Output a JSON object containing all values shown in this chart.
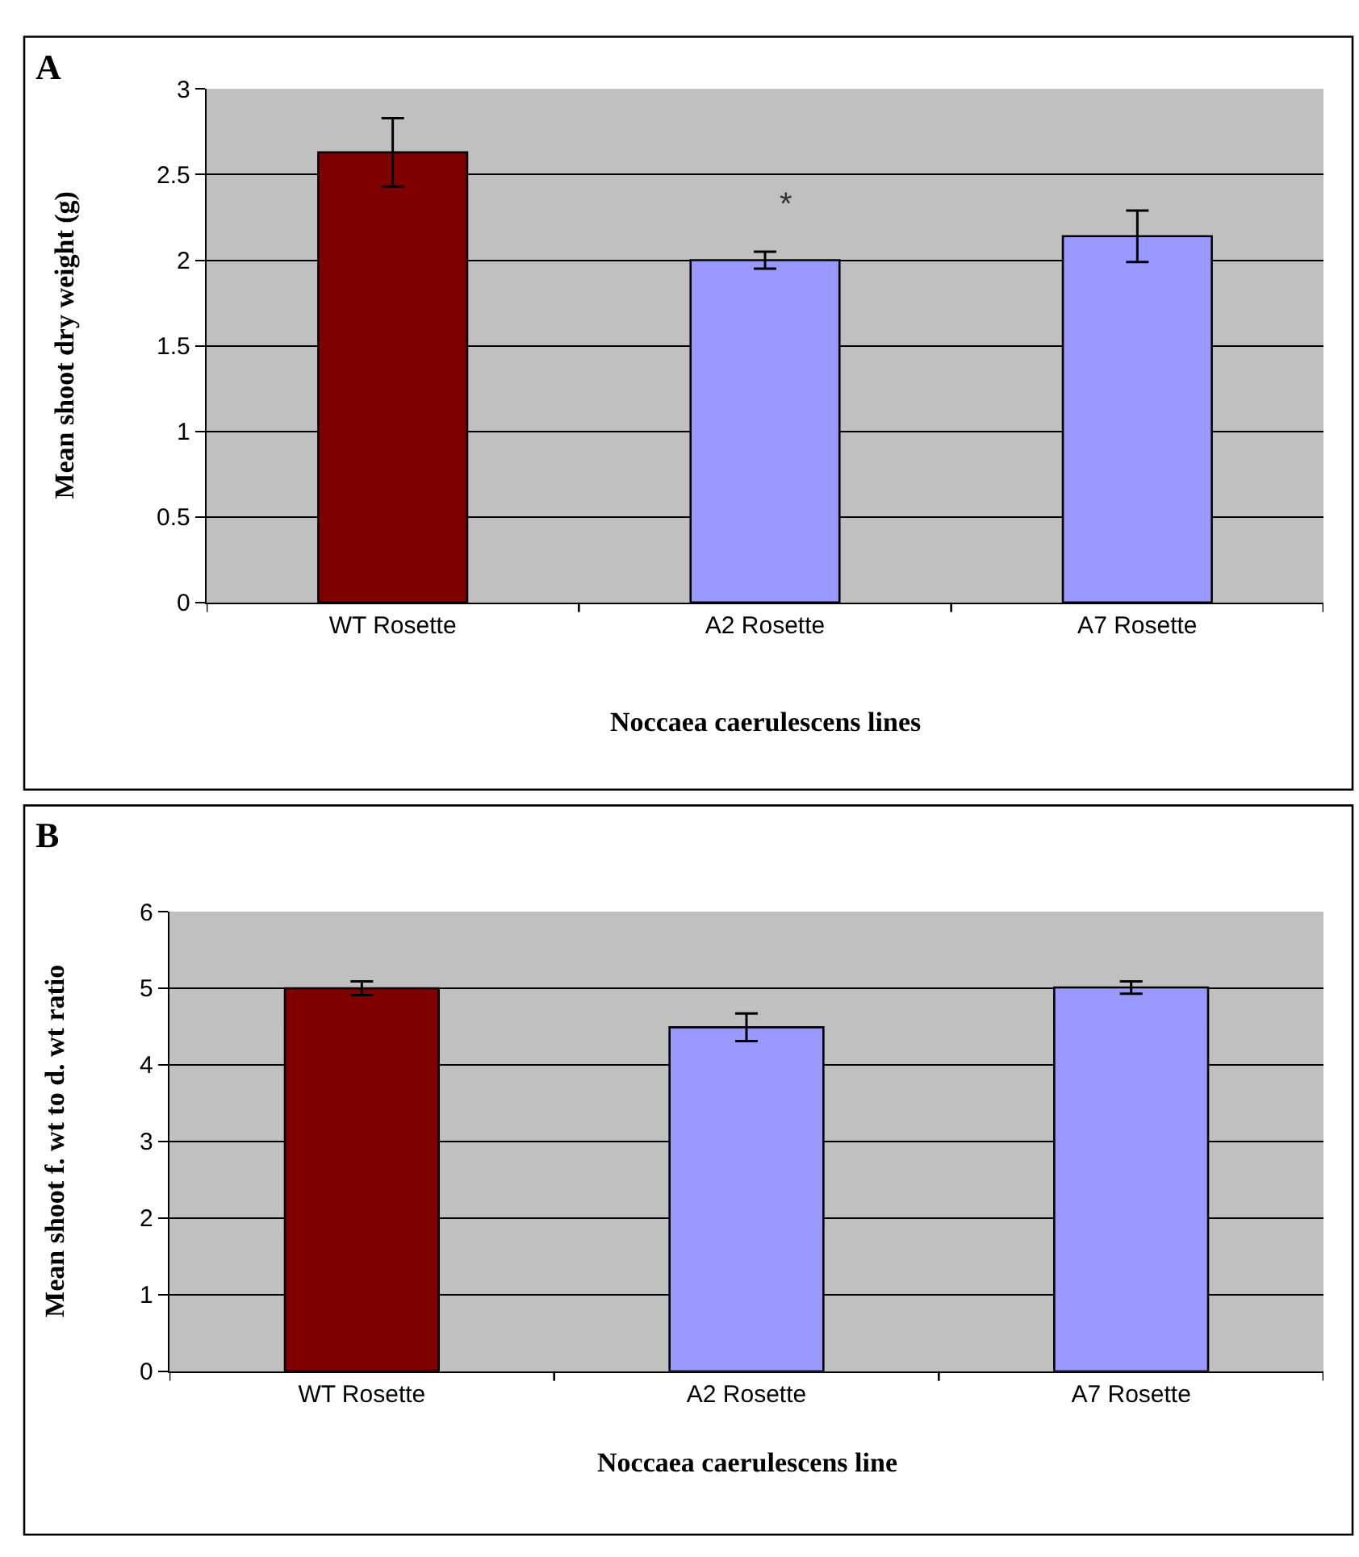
{
  "chart_data": [
    {
      "type": "bar",
      "title": "A",
      "xlabel": "Noccaea caerulescens lines",
      "ylabel": "Mean shoot dry weight (g)",
      "categories": [
        "WT Rosette",
        "A2 Rosette",
        "A7 Rosette"
      ],
      "values": [
        2.63,
        2.0,
        2.14
      ],
      "colors": [
        "#800000",
        "#9999ff",
        "#9999ff"
      ],
      "errors": [
        0.2,
        0.05,
        0.15
      ],
      "ylim": [
        0,
        3
      ],
      "yticks": [
        0,
        0.5,
        1,
        1.5,
        2,
        2.5,
        3
      ],
      "grid": "y",
      "annotations": [
        "*"
      ]
    },
    {
      "type": "bar",
      "title": "B",
      "xlabel": "Noccaea caerulescens line",
      "ylabel": "Mean shoot f. wt to d. wt ratio",
      "categories": [
        "WT Rosette",
        "A2 Rosette",
        "A7 Rosette"
      ],
      "values": [
        5.0,
        4.49,
        5.01
      ],
      "colors": [
        "#800000",
        "#9999ff",
        "#9999ff"
      ],
      "errors": [
        0.09,
        0.18,
        0.08
      ],
      "ylim": [
        0,
        6
      ],
      "yticks": [
        0,
        1,
        2,
        3,
        4,
        5,
        6
      ],
      "grid": "y"
    }
  ]
}
